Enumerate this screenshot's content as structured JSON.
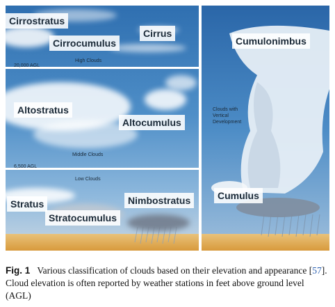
{
  "figure": {
    "cloud_labels": {
      "cirrostratus": "Cirrostratus",
      "cirrocumulus": "Cirrocumulus",
      "cirrus": "Cirrus",
      "altostratus": "Altostratus",
      "altocumulus": "Altocumulus",
      "stratus": "Stratus",
      "stratocumulus": "Stratocumulus",
      "nimbostratus": "Nimbostratus",
      "cumulonimbus": "Cumulonimbus",
      "cumulus": "Cumulus"
    },
    "levels": {
      "high": "High Clouds",
      "middle": "Middle Clouds",
      "low": "Low Clouds",
      "vertical_line1": "Clouds with",
      "vertical_line2": "Vertical",
      "vertical_line3": "Development"
    },
    "altitudes": {
      "high_boundary": "20,000 AGL",
      "low_boundary": "6,500 AGL"
    }
  },
  "caption": {
    "label": "Fig. 1",
    "text_before_ref": "Various classification of clouds based on their elevation and appearance [",
    "ref": "57",
    "text_after_ref": "]. Cloud elevation is often reported by weather stations in feet above ground level (AGL)"
  }
}
